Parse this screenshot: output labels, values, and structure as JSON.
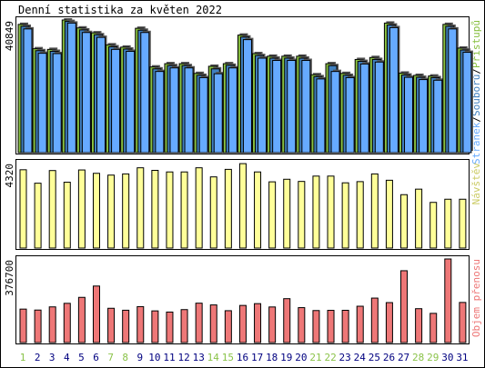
{
  "chart_data": {
    "title": "Denní statistika za květen 2022",
    "days": [
      "1",
      "2",
      "3",
      "4",
      "5",
      "6",
      "7",
      "8",
      "9",
      "10",
      "11",
      "12",
      "13",
      "14",
      "15",
      "16",
      "17",
      "18",
      "19",
      "20",
      "21",
      "22",
      "23",
      "24",
      "25",
      "26",
      "27",
      "28",
      "29",
      "30",
      "31"
    ],
    "weekend_days": [
      "1",
      "7",
      "8",
      "14",
      "15",
      "21",
      "22",
      "28",
      "29"
    ],
    "colors": {
      "weekday_label": "#008000",
      "weekend_label": "#008000",
      "weekday_text": "#000080",
      "weekend_text": "#8bc34a",
      "hits": "#88c040",
      "files": "#4080c0",
      "pages": "#66aaff",
      "visits": "#ffff99",
      "kbytes": "#ee7777"
    },
    "charts": [
      {
        "type": "bar",
        "name": "hits",
        "ymax_label": "40849",
        "ymax": 40849,
        "right_label_parts": [
          {
            "text": "Stránek",
            "color": "#66aaff"
          },
          {
            "text": "/",
            "color": "#000000"
          },
          {
            "text": "Souborů",
            "color": "#4080c0"
          },
          {
            "text": "/",
            "color": "#000000"
          },
          {
            "text": "Přístupů",
            "color": "#88c040"
          }
        ],
        "series": [
          {
            "name": "Přístupů",
            "values": [
              39500,
              32000,
              31800,
              40849,
              38400,
              36900,
              33200,
              32500,
              38300,
              26400,
              27400,
              27400,
              24400,
              26600,
              27400,
              36200,
              30500,
              29700,
              29700,
              29700,
              24000,
              27400,
              24400,
              28700,
              29300,
              39900,
              24500,
              23800,
              23600,
              39500,
              32200
            ]
          },
          {
            "name": "Souborů",
            "values": [
              38900,
              31400,
              31200,
              40400,
              37800,
              36300,
              32600,
              31900,
              37700,
              25800,
              26800,
              26800,
              23800,
              25800,
              26900,
              35600,
              29900,
              29100,
              29100,
              29100,
              23400,
              26800,
              23800,
              28100,
              28700,
              39300,
              23900,
              23200,
              23100,
              38900,
              31600
            ]
          },
          {
            "name": "Stránek",
            "values": [
              38100,
              30600,
              30500,
              39900,
              37000,
              35500,
              31800,
              31200,
              37000,
              25000,
              26100,
              26100,
              23100,
              24300,
              26100,
              34800,
              29100,
              28400,
              28400,
              28400,
              22700,
              25000,
              23100,
              27300,
              27900,
              38500,
              23200,
              22500,
              22300,
              38100,
              30900
            ]
          }
        ]
      },
      {
        "type": "bar",
        "name": "visits",
        "ymax_label": "4320",
        "ymax": 4320,
        "right_label_parts": [
          {
            "text": "Návštěv",
            "color": "#cccc66"
          }
        ],
        "series": [
          {
            "name": "Návštěv",
            "values": [
              3960,
              3280,
              3920,
              3330,
              3950,
              3780,
              3690,
              3750,
              4060,
              3930,
              3850,
              3850,
              4060,
              3600,
              3980,
              4270,
              3850,
              3350,
              3480,
              3370,
              3640,
              3640,
              3300,
              3360,
              3750,
              3430,
              2700,
              2980,
              2310,
              2470,
              2470
            ]
          }
        ]
      },
      {
        "type": "bar",
        "name": "kbytes",
        "ymax_label": "376700",
        "ymax": 376700,
        "right_label_parts": [
          {
            "text": "Objem přenosu",
            "color": "#ee7777"
          }
        ],
        "series": [
          {
            "name": "Objem přenosu",
            "values": [
              150800,
              146500,
              160800,
              176800,
              203700,
              254700,
              154500,
              145700,
              162000,
              142700,
              137500,
              148500,
              177500,
              169600,
              143600,
              167300,
              175400,
              160400,
              197800,
              157400,
              144300,
              145200,
              145400,
              163700,
              200400,
              180100,
              323700,
              152700,
              131600,
              376700,
              180800
            ]
          }
        ]
      }
    ]
  }
}
